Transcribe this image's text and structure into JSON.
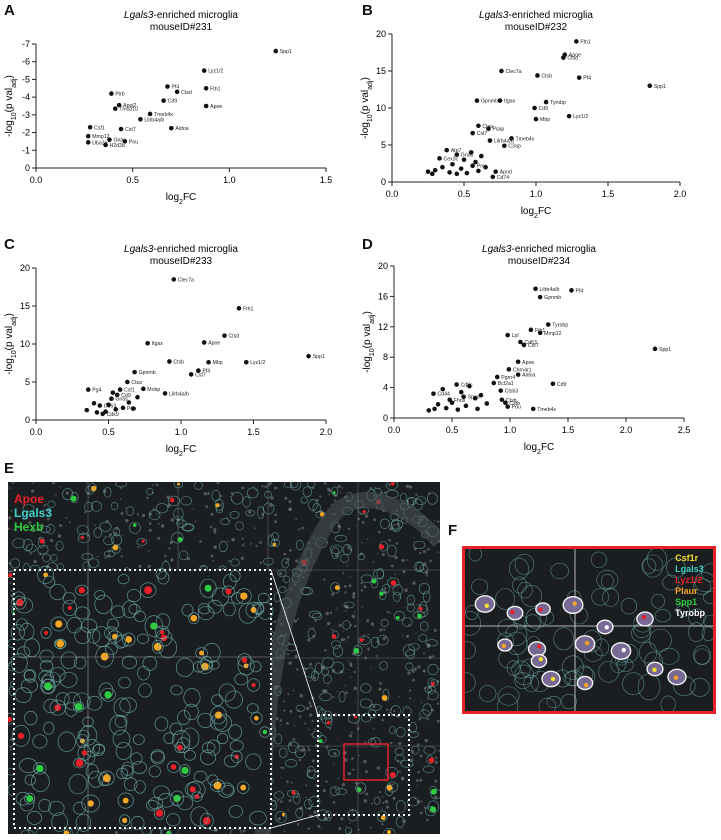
{
  "panels": {
    "A": "A",
    "B": "B",
    "C": "C",
    "D": "D",
    "E": "E",
    "F": "F"
  },
  "chart_data": [
    {
      "id": "A",
      "type": "scatter",
      "title_italic": "Lgals3",
      "title_rest": "-enriched microglia",
      "subtitle": "mouseID#231",
      "xlabel": "log2FC",
      "ylabel": "-log10(p val adj)",
      "xlim": [
        0,
        1.5
      ],
      "ylim": [
        0,
        7
      ],
      "xticks": [
        "0.0",
        "0.5",
        "1.0",
        "1.5"
      ],
      "yticks": [
        "0",
        "-1",
        "-2",
        "-3",
        "-4",
        "-5",
        "-6",
        "-7"
      ],
      "points": [
        {
          "x": 1.24,
          "y": 6.6,
          "label": "Spp1"
        },
        {
          "x": 0.87,
          "y": 5.5,
          "label": "Lyz1/2"
        },
        {
          "x": 0.68,
          "y": 4.6,
          "label": "Pf4"
        },
        {
          "x": 0.88,
          "y": 4.5,
          "label": "Fth1"
        },
        {
          "x": 0.73,
          "y": 4.3,
          "label": "Ctsd"
        },
        {
          "x": 0.39,
          "y": 4.2,
          "label": "Pirb"
        },
        {
          "x": 0.66,
          "y": 3.8,
          "label": "Cd9"
        },
        {
          "x": 0.43,
          "y": 3.55,
          "label": "Apoj2"
        },
        {
          "x": 0.88,
          "y": 3.5,
          "label": "Apoe"
        },
        {
          "x": 0.41,
          "y": 3.35,
          "label": "Tmsb10"
        },
        {
          "x": 0.59,
          "y": 3.05,
          "label": "Tmeb4x"
        },
        {
          "x": 0.54,
          "y": 2.75,
          "label": "Lilrb4a/b"
        },
        {
          "x": 0.28,
          "y": 2.3,
          "label": "Csf1"
        },
        {
          "x": 0.44,
          "y": 2.2,
          "label": "Cst7"
        },
        {
          "x": 0.7,
          "y": 2.25,
          "label": "Aldoa"
        },
        {
          "x": 0.27,
          "y": 1.8,
          "label": "Mmp12"
        },
        {
          "x": 0.38,
          "y": 1.6,
          "label": "Gnas"
        },
        {
          "x": 0.46,
          "y": 1.5,
          "label": "Pou"
        },
        {
          "x": 0.27,
          "y": 1.45,
          "label": "Uba3e"
        },
        {
          "x": 0.36,
          "y": 1.3,
          "label": "H2d2b"
        }
      ]
    },
    {
      "id": "B",
      "type": "scatter",
      "title_italic": "Lgals3",
      "title_rest": "-enriched microglia",
      "subtitle": "mouseID#232",
      "xlabel": "log2FC",
      "ylabel": "-log10(p val adj)",
      "xlim": [
        0,
        2.0
      ],
      "ylim": [
        0,
        20
      ],
      "xticks": [
        "0.0",
        "0.5",
        "1.0",
        "1.5",
        "2.0"
      ],
      "yticks": [
        "0",
        "5",
        "10",
        "15",
        "20"
      ],
      "points": [
        {
          "x": 1.28,
          "y": 19.0,
          "label": "Fth1"
        },
        {
          "x": 1.2,
          "y": 17.2,
          "label": "Apoe"
        },
        {
          "x": 1.19,
          "y": 16.8,
          "label": "Ctsd"
        },
        {
          "x": 0.76,
          "y": 15.0,
          "label": "Clec7a"
        },
        {
          "x": 1.01,
          "y": 14.4,
          "label": "Ctsb"
        },
        {
          "x": 1.3,
          "y": 14.1,
          "label": "Pf4"
        },
        {
          "x": 1.79,
          "y": 13.0,
          "label": "Spp1"
        },
        {
          "x": 0.59,
          "y": 11.0,
          "label": "Gpnmb"
        },
        {
          "x": 0.75,
          "y": 11.0,
          "label": "Itgax"
        },
        {
          "x": 1.07,
          "y": 10.8,
          "label": "Tyrobp"
        },
        {
          "x": 0.99,
          "y": 10.0,
          "label": "Cd9"
        },
        {
          "x": 1.23,
          "y": 8.9,
          "label": "Lyz1/2"
        },
        {
          "x": 1.0,
          "y": 8.5,
          "label": "Mbp"
        },
        {
          "x": 0.6,
          "y": 7.6,
          "label": "Ctsa"
        },
        {
          "x": 0.67,
          "y": 7.2,
          "label": "Psap"
        },
        {
          "x": 0.56,
          "y": 6.6,
          "label": "Cst7"
        },
        {
          "x": 0.83,
          "y": 5.9,
          "label": "Tmeb4x"
        },
        {
          "x": 0.68,
          "y": 5.6,
          "label": "Lilrb4a/b"
        },
        {
          "x": 0.78,
          "y": 4.9,
          "label": "C3ap"
        },
        {
          "x": 0.38,
          "y": 4.3,
          "label": "Atp7"
        },
        {
          "x": 0.45,
          "y": 3.7,
          "label": "Gnas"
        },
        {
          "x": 0.33,
          "y": 3.2,
          "label": "Cex3c"
        },
        {
          "x": 0.56,
          "y": 2.2,
          "label": "Pou"
        },
        {
          "x": 0.72,
          "y": 1.4,
          "label": "Apod"
        },
        {
          "x": 0.7,
          "y": 0.7,
          "label": "Cd74"
        },
        {
          "x": 0.25,
          "y": 1.4,
          "label": ""
        },
        {
          "x": 0.3,
          "y": 1.6,
          "label": ""
        },
        {
          "x": 0.35,
          "y": 2.0,
          "label": ""
        },
        {
          "x": 0.4,
          "y": 1.3,
          "label": ""
        },
        {
          "x": 0.42,
          "y": 2.4,
          "label": ""
        },
        {
          "x": 0.48,
          "y": 1.8,
          "label": ""
        },
        {
          "x": 0.5,
          "y": 3.0,
          "label": ""
        },
        {
          "x": 0.52,
          "y": 1.2,
          "label": ""
        },
        {
          "x": 0.55,
          "y": 4.0,
          "label": ""
        },
        {
          "x": 0.58,
          "y": 2.7,
          "label": ""
        },
        {
          "x": 0.6,
          "y": 1.5,
          "label": ""
        },
        {
          "x": 0.62,
          "y": 3.5,
          "label": ""
        },
        {
          "x": 0.65,
          "y": 2.0,
          "label": ""
        },
        {
          "x": 0.45,
          "y": 1.1,
          "label": ""
        },
        {
          "x": 0.28,
          "y": 1.1,
          "label": ""
        }
      ]
    },
    {
      "id": "C",
      "type": "scatter",
      "title_italic": "Lgals3",
      "title_rest": "-enriched microglia",
      "subtitle": "mouseID#233",
      "xlabel": "log2FC",
      "ylabel": "-log10(p val adj)",
      "xlim": [
        0,
        2.0
      ],
      "ylim": [
        0,
        20
      ],
      "xticks": [
        "0.0",
        "0.5",
        "1.0",
        "1.5",
        "2.0"
      ],
      "yticks": [
        "0",
        "5",
        "10",
        "15",
        "20"
      ],
      "points": [
        {
          "x": 0.95,
          "y": 18.5,
          "label": "Clec7a"
        },
        {
          "x": 1.4,
          "y": 14.7,
          "label": "Fth1"
        },
        {
          "x": 1.3,
          "y": 11.1,
          "label": "Ctsd"
        },
        {
          "x": 1.16,
          "y": 10.2,
          "label": "Apoe"
        },
        {
          "x": 0.77,
          "y": 10.1,
          "label": "Itgax"
        },
        {
          "x": 1.88,
          "y": 8.4,
          "label": "Spp1"
        },
        {
          "x": 0.92,
          "y": 7.7,
          "label": "Ctsb"
        },
        {
          "x": 1.19,
          "y": 7.6,
          "label": "Mbp"
        },
        {
          "x": 1.45,
          "y": 7.6,
          "label": "Lyz1/2"
        },
        {
          "x": 1.12,
          "y": 6.5,
          "label": "Pf4"
        },
        {
          "x": 1.07,
          "y": 6.0,
          "label": "Cst7"
        },
        {
          "x": 0.68,
          "y": 6.3,
          "label": "Gpnmb"
        },
        {
          "x": 0.63,
          "y": 5.0,
          "label": "Ctsa"
        },
        {
          "x": 0.58,
          "y": 4.0,
          "label": "Csf1"
        },
        {
          "x": 0.74,
          "y": 4.1,
          "label": "Mobp"
        },
        {
          "x": 0.89,
          "y": 3.5,
          "label": "Lilrb4a/b"
        },
        {
          "x": 0.36,
          "y": 4.0,
          "label": "Pg4"
        },
        {
          "x": 0.56,
          "y": 3.3,
          "label": "Cd9"
        },
        {
          "x": 0.52,
          "y": 2.8,
          "label": "Gnas"
        },
        {
          "x": 0.44,
          "y": 1.9,
          "label": "Cd63"
        },
        {
          "x": 0.6,
          "y": 1.6,
          "label": "Pou"
        },
        {
          "x": 0.46,
          "y": 0.8,
          "label": "Cdk9"
        },
        {
          "x": 0.35,
          "y": 1.3,
          "label": ""
        },
        {
          "x": 0.4,
          "y": 2.2,
          "label": ""
        },
        {
          "x": 0.48,
          "y": 1.1,
          "label": ""
        },
        {
          "x": 0.5,
          "y": 2.0,
          "label": ""
        },
        {
          "x": 0.53,
          "y": 3.6,
          "label": ""
        },
        {
          "x": 0.55,
          "y": 1.4,
          "label": ""
        },
        {
          "x": 0.64,
          "y": 2.3,
          "label": ""
        },
        {
          "x": 0.67,
          "y": 1.5,
          "label": ""
        },
        {
          "x": 0.7,
          "y": 3.0,
          "label": ""
        },
        {
          "x": 0.42,
          "y": 1.0,
          "label": ""
        }
      ]
    },
    {
      "id": "D",
      "type": "scatter",
      "title_italic": "Lgals3",
      "title_rest": "-enriched microglia",
      "subtitle": "mouseID#234",
      "xlabel": "log2FC",
      "ylabel": "-log10(p val adj)",
      "xlim": [
        0,
        2.5
      ],
      "ylim": [
        0,
        20
      ],
      "xticks": [
        "0.0",
        "0.5",
        "1.0",
        "1.5",
        "2.0",
        "2.5"
      ],
      "yticks": [
        "0",
        "4",
        "8",
        "12",
        "16",
        "20"
      ],
      "points": [
        {
          "x": 1.22,
          "y": 17.0,
          "label": "Lilrb4a/b"
        },
        {
          "x": 1.53,
          "y": 16.8,
          "label": "Pf4"
        },
        {
          "x": 1.26,
          "y": 15.9,
          "label": "Gpnmb"
        },
        {
          "x": 1.33,
          "y": 12.3,
          "label": "Tyrobp"
        },
        {
          "x": 1.18,
          "y": 11.6,
          "label": "Fth1"
        },
        {
          "x": 1.26,
          "y": 11.2,
          "label": "Mmp12"
        },
        {
          "x": 0.98,
          "y": 10.9,
          "label": "Lpl"
        },
        {
          "x": 1.09,
          "y": 10.0,
          "label": "Cd63"
        },
        {
          "x": 1.12,
          "y": 9.6,
          "label": "Cst7"
        },
        {
          "x": 2.25,
          "y": 9.1,
          "label": "Spp1"
        },
        {
          "x": 1.07,
          "y": 7.4,
          "label": "Apoe"
        },
        {
          "x": 0.99,
          "y": 6.4,
          "label": "Chrn4r1"
        },
        {
          "x": 1.07,
          "y": 5.7,
          "label": "Aldoa"
        },
        {
          "x": 0.89,
          "y": 5.4,
          "label": "Pgrn4"
        },
        {
          "x": 0.86,
          "y": 4.6,
          "label": "Bcl2a1"
        },
        {
          "x": 1.37,
          "y": 4.5,
          "label": "Cd9"
        },
        {
          "x": 0.54,
          "y": 4.4,
          "label": "Cd9c"
        },
        {
          "x": 0.92,
          "y": 3.6,
          "label": "Ctsb3"
        },
        {
          "x": 0.34,
          "y": 3.2,
          "label": "Cd44"
        },
        {
          "x": 0.6,
          "y": 2.8,
          "label": "Spas"
        },
        {
          "x": 0.93,
          "y": 2.4,
          "label": "Ctsb"
        },
        {
          "x": 0.96,
          "y": 2.0,
          "label": "Cstb"
        },
        {
          "x": 0.48,
          "y": 2.4,
          "label": "Fhos"
        },
        {
          "x": 0.98,
          "y": 1.5,
          "label": "Pou"
        },
        {
          "x": 1.2,
          "y": 1.2,
          "label": "Tmeb4x"
        },
        {
          "x": 0.3,
          "y": 1.0,
          "label": ""
        },
        {
          "x": 0.38,
          "y": 1.8,
          "label": ""
        },
        {
          "x": 0.42,
          "y": 3.8,
          "label": ""
        },
        {
          "x": 0.45,
          "y": 1.3,
          "label": ""
        },
        {
          "x": 0.5,
          "y": 2.0,
          "label": ""
        },
        {
          "x": 0.55,
          "y": 1.1,
          "label": ""
        },
        {
          "x": 0.58,
          "y": 3.4,
          "label": ""
        },
        {
          "x": 0.62,
          "y": 1.6,
          "label": ""
        },
        {
          "x": 0.65,
          "y": 4.2,
          "label": ""
        },
        {
          "x": 0.7,
          "y": 2.6,
          "label": ""
        },
        {
          "x": 0.72,
          "y": 1.2,
          "label": ""
        },
        {
          "x": 0.75,
          "y": 3.0,
          "label": ""
        },
        {
          "x": 0.8,
          "y": 1.9,
          "label": ""
        },
        {
          "x": 0.35,
          "y": 1.2,
          "label": ""
        }
      ]
    }
  ],
  "panelE": {
    "legend": [
      {
        "text": "Apoe",
        "color": "#e8202a"
      },
      {
        "text": "Lgals3",
        "color": "#3fd0c8"
      },
      {
        "text": "Hexb",
        "color": "#2ecc40"
      }
    ]
  },
  "panelF": {
    "legend": [
      {
        "text": "Csf1r",
        "color": "#f5e12a"
      },
      {
        "text": "Lgals3",
        "color": "#3fd0c8"
      },
      {
        "text": "Lyz1/2",
        "color": "#e8202a"
      },
      {
        "text": "Plaur",
        "color": "#f5a623"
      },
      {
        "text": "Spp1",
        "color": "#2ecc40"
      },
      {
        "text": "Tyrobp",
        "color": "#ffffff"
      }
    ]
  }
}
